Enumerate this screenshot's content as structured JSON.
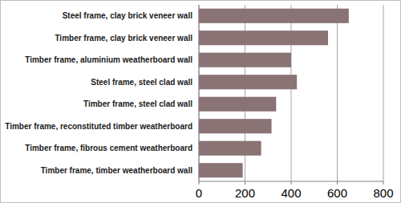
{
  "chart_data": {
    "type": "bar",
    "orientation": "horizontal",
    "categories": [
      "Steel frame, clay brick veneer wall",
      "Timber frame, clay brick veneer wall",
      "Timber frame, aluminium weatherboard wall",
      "Steel frame, steel clad wall",
      "Timber frame, steel clad wall",
      "Timber frame, reconstituted timber weatherboard",
      "Timber frame, fibrous cement weatherboard",
      "Timber frame, timber weatherboard wall"
    ],
    "values": [
      650,
      560,
      400,
      425,
      335,
      315,
      270,
      190
    ],
    "color": "#8a7375",
    "xlim": [
      0,
      800
    ],
    "xticks": [
      0,
      200,
      400,
      600,
      800
    ],
    "grid": true
  }
}
